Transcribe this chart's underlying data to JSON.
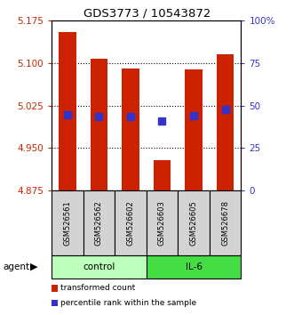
{
  "title": "GDS3773 / 10543872",
  "samples": [
    "GSM526561",
    "GSM526562",
    "GSM526602",
    "GSM526603",
    "GSM526605",
    "GSM526678"
  ],
  "bar_values": [
    5.155,
    5.108,
    5.09,
    4.928,
    5.088,
    5.115
  ],
  "bar_bottom": 4.875,
  "percentile_values": [
    5.008,
    5.005,
    5.005,
    4.998,
    5.007,
    5.018
  ],
  "bar_color": "#cc2200",
  "percentile_color": "#3333cc",
  "ylim": [
    4.875,
    5.175
  ],
  "yticks_left": [
    4.875,
    4.95,
    5.025,
    5.1,
    5.175
  ],
  "yticks_right": [
    0,
    25,
    50,
    75,
    100
  ],
  "yticks_right_labels": [
    "0",
    "25",
    "50",
    "75",
    "100%"
  ],
  "control_color": "#bbffbb",
  "il6_color": "#44dd44",
  "group_label_control": "control",
  "group_label_il6": "IL-6",
  "agent_label": "agent",
  "legend_bar_label": "transformed count",
  "legend_pct_label": "percentile rank within the sample",
  "bar_width": 0.55,
  "percentile_marker_size": 6,
  "n_control": 3,
  "n_il6": 3
}
